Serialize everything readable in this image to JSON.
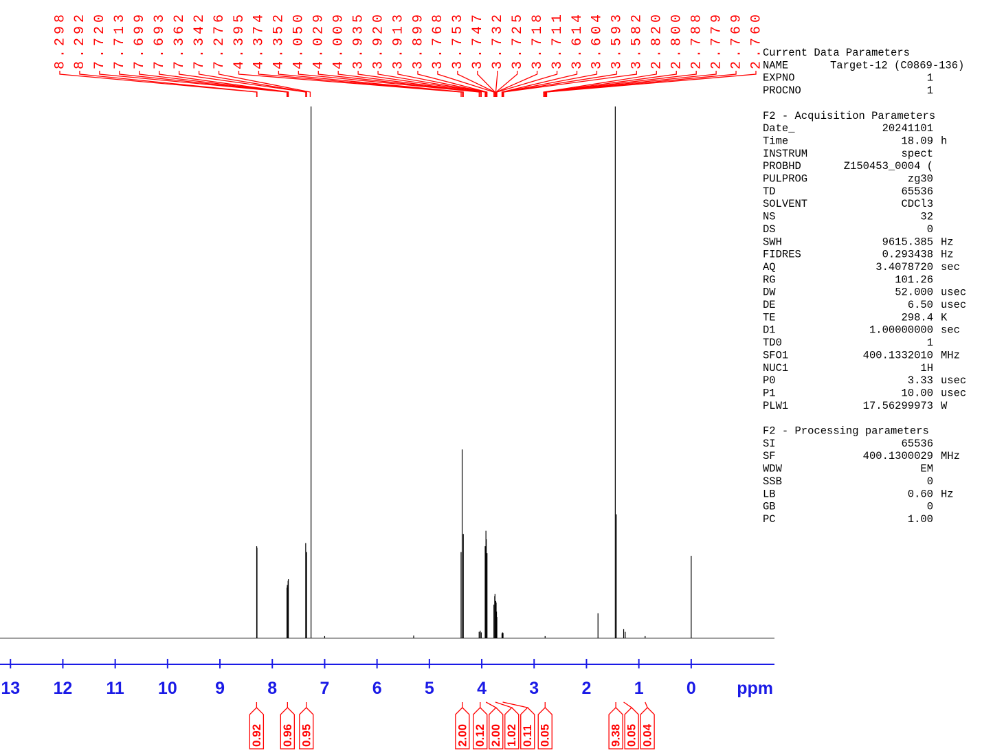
{
  "chart_data": {
    "type": "nmr",
    "x_label": "ppm",
    "xlim": [
      13.2,
      -1.59
    ],
    "xticks": [
      13,
      12,
      11,
      10,
      9,
      8,
      7,
      6,
      5,
      4,
      3,
      2,
      1,
      0
    ],
    "ylim": [
      0,
      100
    ],
    "color": "#000000",
    "axis_color": "#1a1ae6",
    "annotation_color": "#ff0000",
    "signals": {
      "x": [
        8.298,
        8.292,
        7.72,
        7.713,
        7.699,
        7.693,
        7.362,
        7.342,
        7.26,
        7.0,
        5.3,
        4.395,
        4.374,
        4.352,
        4.05,
        4.029,
        4.009,
        3.935,
        3.92,
        3.913,
        3.899,
        3.768,
        3.753,
        3.747,
        3.732,
        3.725,
        3.718,
        3.711,
        3.614,
        3.604,
        3.593,
        2.79,
        1.78,
        1.45,
        1.43,
        1.29,
        1.26,
        0.88,
        0.0
      ],
      "values": [
        17.3,
        17.0,
        9.5,
        10.0,
        10.8,
        11.1,
        17.9,
        16.2,
        100,
        0.4,
        0.5,
        16.2,
        35.5,
        19.6,
        1.2,
        1.4,
        1.1,
        17.3,
        20.2,
        18.6,
        16.0,
        6.3,
        7.9,
        8.3,
        7.0,
        6.7,
        5.0,
        4.0,
        0.9,
        1.1,
        1.0,
        0.4,
        4.7,
        100,
        23.3,
        1.7,
        1.2,
        0.4,
        15.5
      ]
    },
    "peaks": {
      "values": [
        8.298,
        8.292,
        7.72,
        7.713,
        7.699,
        7.693,
        7.362,
        7.342,
        7.276,
        4.395,
        4.374,
        4.352,
        4.05,
        4.029,
        4.009,
        3.935,
        3.92,
        3.913,
        3.899,
        3.768,
        3.753,
        3.747,
        3.732,
        3.725,
        3.718,
        3.711,
        3.614,
        3.604,
        3.593,
        3.582,
        2.82,
        2.8,
        2.788,
        2.779,
        2.769,
        2.76
      ],
      "value_labels": [
        "8.298",
        "8.292",
        "7.720",
        "7.713",
        "7.699",
        "7.693",
        "7.362",
        "7.342",
        "7.276",
        "4.395",
        "4.374",
        "4.352",
        "4.050",
        "4.029",
        "4.009",
        "3.935",
        "3.920",
        "3.913",
        "3.899",
        "3.768",
        "3.753",
        "3.747",
        "3.732",
        "3.725",
        "3.718",
        "3.711",
        "3.614",
        "3.604",
        "3.593",
        "3.582",
        "2.820",
        "2.800",
        "2.788",
        "2.779",
        "2.769",
        "2.760"
      ]
    },
    "integrals": {
      "x": [
        8.3,
        7.71,
        7.35,
        4.37,
        4.03,
        3.92,
        3.74,
        3.6,
        2.79,
        1.44,
        1.29,
        0.88
      ],
      "values": [
        0.92,
        0.96,
        0.95,
        2.0,
        0.12,
        2.0,
        1.02,
        0.11,
        0.05,
        9.38,
        0.05,
        0.04
      ],
      "value_labels": [
        "0.92",
        "0.96",
        "0.95",
        "2.00",
        "0.12",
        "2.00",
        "1.02",
        "0.11",
        "0.05",
        "9.38",
        "0.05",
        "0.04"
      ]
    }
  },
  "parameters": {
    "sections": [
      {
        "title": "Current Data Parameters",
        "rows": [
          [
            "NAME",
            "Target-12 (C0869-136)"
          ],
          [
            "EXPNO",
            "1"
          ],
          [
            "PROCNO",
            "1"
          ]
        ]
      },
      {
        "title": "F2 - Acquisition Parameters",
        "rows": [
          [
            "Date_",
            "20241101"
          ],
          [
            "Time",
            "18.09",
            "h"
          ],
          [
            "INSTRUM",
            "spect"
          ],
          [
            "PROBHD",
            "Z150453_0004 ("
          ],
          [
            "PULPROG",
            "zg30"
          ],
          [
            "TD",
            "65536"
          ],
          [
            "SOLVENT",
            "CDCl3"
          ],
          [
            "NS",
            "32"
          ],
          [
            "DS",
            "0"
          ],
          [
            "SWH",
            "9615.385",
            "Hz"
          ],
          [
            "FIDRES",
            "0.293438",
            "Hz"
          ],
          [
            "AQ",
            "3.4078720",
            "sec"
          ],
          [
            "RG",
            "101.26"
          ],
          [
            "DW",
            "52.000",
            "usec"
          ],
          [
            "DE",
            "6.50",
            "usec"
          ],
          [
            "TE",
            "298.4",
            "K"
          ],
          [
            "D1",
            "1.00000000",
            "sec"
          ],
          [
            "TD0",
            "1"
          ],
          [
            "SFO1",
            "400.1332010",
            "MHz"
          ],
          [
            "NUC1",
            "1H"
          ],
          [
            "P0",
            "3.33",
            "usec"
          ],
          [
            "P1",
            "10.00",
            "usec"
          ],
          [
            "PLW1",
            "17.56299973",
            "W"
          ]
        ]
      },
      {
        "title": "F2 - Processing parameters",
        "rows": [
          [
            "SI",
            "65536"
          ],
          [
            "SF",
            "400.1300029",
            "MHz"
          ],
          [
            "WDW",
            "EM"
          ],
          [
            "SSB",
            "0"
          ],
          [
            "LB",
            "0.60",
            "Hz"
          ],
          [
            "GB",
            "0"
          ],
          [
            "PC",
            "1.00"
          ]
        ]
      }
    ]
  }
}
